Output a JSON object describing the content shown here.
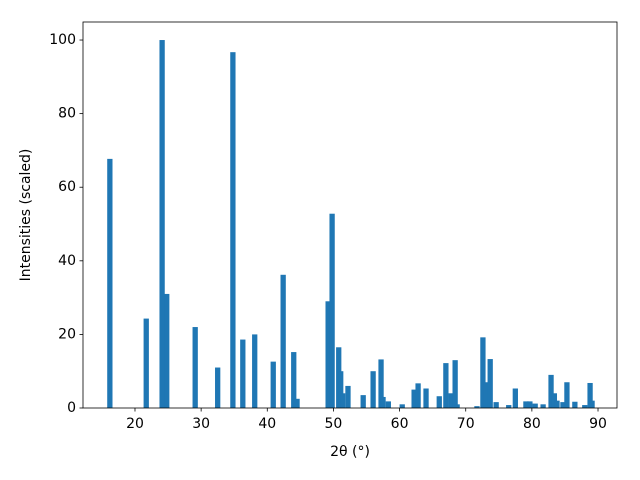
{
  "chart_data": {
    "type": "bar",
    "color": "#1f77b4",
    "bar_width": 0.8,
    "x_label": "2θ (°)",
    "y_label": "Intensities (scaled)",
    "x": [
      16.2,
      21.7,
      24.1,
      24.8,
      29.1,
      32.5,
      34.8,
      36.3,
      38.1,
      40.9,
      42.4,
      44.0,
      44.5,
      49.2,
      49.8,
      50.8,
      51.1,
      51.4,
      52.2,
      54.5,
      56.0,
      57.2,
      57.5,
      58.3,
      60.4,
      62.2,
      62.8,
      64.0,
      66.0,
      67.0,
      67.8,
      68.4,
      68.7,
      71.7,
      72.6,
      73.1,
      73.7,
      74.6,
      76.5,
      77.5,
      79.1,
      79.7,
      80.5,
      81.7,
      82.9,
      83.4,
      83.8,
      84.7,
      85.3,
      86.5,
      88.0,
      88.8,
      89.1
    ],
    "values": [
      67.7,
      24.3,
      100,
      31,
      22,
      11,
      96.7,
      18.6,
      20,
      12.6,
      36.2,
      15.2,
      2.5,
      29,
      52.8,
      16.5,
      10,
      4,
      6,
      3.5,
      10,
      13.2,
      3,
      1.8,
      1,
      5,
      6.7,
      5.3,
      3.2,
      12.2,
      4,
      13,
      1,
      0.5,
      19.2,
      7,
      13.3,
      1.6,
      0.8,
      5.3,
      1.8,
      1.8,
      1.2,
      1,
      9,
      4,
      2,
      1.6,
      7,
      1.7,
      0.8,
      6.8,
      2
    ],
    "xlim": [
      12.14,
      92.87
    ],
    "ylim": [
      0,
      104.9
    ],
    "xticks": [
      20,
      30,
      40,
      50,
      60,
      70,
      80,
      90
    ],
    "yticks": [
      0,
      20,
      40,
      60,
      80,
      100
    ]
  }
}
